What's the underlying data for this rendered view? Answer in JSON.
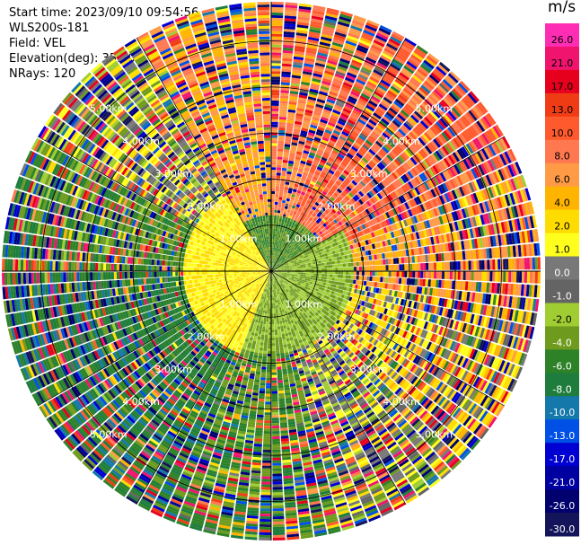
{
  "header": {
    "start_time": "Start time: 2023/09/10 09:54:56",
    "instrument": "WLS200s-181",
    "field": "Field: VEL",
    "elevation": "Elevation(deg): 35.30",
    "nrays": "NRays: 120"
  },
  "colorbar": {
    "units": "m/s",
    "ticks": [
      "26.0",
      "21.0",
      "17.0",
      "13.0",
      "10.0",
      "8.0",
      "6.0",
      "4.0",
      "2.0",
      "1.0",
      "0.0",
      "-1.0",
      "-2.0",
      "-4.0",
      "-6.0",
      "-8.0",
      "-10.0",
      "-13.0",
      "-17.0",
      "-21.0",
      "-26.0",
      "-30.0"
    ],
    "colors": [
      "#ff2db4",
      "#f0146e",
      "#e6001e",
      "#f03c14",
      "#ff5a2d",
      "#ff7850",
      "#ff9b46",
      "#ffb400",
      "#ffdc00",
      "#ffff1e",
      "#787878",
      "#646464",
      "#a0cd32",
      "#6e9b1e",
      "#2d8228",
      "#1e7d3c",
      "#1478aa",
      "#0050e6",
      "#0000d2",
      "#0000a0",
      "#00006e",
      "#14145a"
    ]
  },
  "chart_data": {
    "type": "ppi",
    "field": "VEL",
    "units": "m/s",
    "elevation_deg": 35.3,
    "n_rays": 120,
    "range_rings_km": [
      1.0,
      2.0,
      3.0,
      4.0,
      5.0
    ],
    "ring_labels": [
      "1.00km",
      "2.00km",
      "3.00km",
      "4.00km",
      "5.00km"
    ],
    "max_range_km": 5.85,
    "gate_km": 0.058,
    "sectors": [
      {
        "az_from": 0,
        "az_to": 20,
        "value": 8.0
      },
      {
        "az_from": 20,
        "az_to": 45,
        "value": 10.0
      },
      {
        "az_from": 45,
        "az_to": 70,
        "value": 10.0
      },
      {
        "az_from": 70,
        "az_to": 100,
        "value": 6.0
      },
      {
        "az_from": 100,
        "az_to": 135,
        "value": 2.0
      },
      {
        "az_from": 135,
        "az_to": 165,
        "value": 0.0
      },
      {
        "az_from": 165,
        "az_to": 205,
        "value": -4.0
      },
      {
        "az_from": 205,
        "az_to": 240,
        "value": -6.0
      },
      {
        "az_from": 240,
        "az_to": 270,
        "value": -6.0
      },
      {
        "az_from": 270,
        "az_to": 300,
        "value": -4.0
      },
      {
        "az_from": 300,
        "az_to": 330,
        "value": 0.0
      },
      {
        "az_from": 330,
        "az_to": 360,
        "value": 6.0
      }
    ],
    "inner_field": [
      {
        "az_from": 200,
        "az_to": 330,
        "r_max_km": 1.9,
        "value": 2.0
      },
      {
        "az_from": 330,
        "az_to": 60,
        "r_max_km": 1.2,
        "value": -4.0
      },
      {
        "az_from": 60,
        "az_to": 200,
        "r_max_km": 1.8,
        "value": -2.0
      }
    ]
  }
}
